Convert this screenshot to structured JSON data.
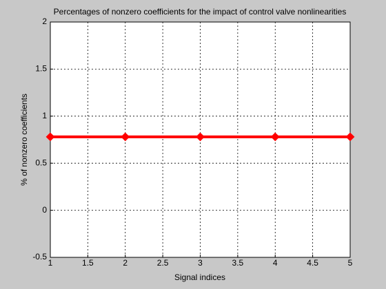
{
  "chart_data": {
    "type": "line",
    "title": "Percentages of nonzero coefficients for the impact of control valve nonlinearities",
    "x_label": "Signal indices",
    "y_label": "% of nonzero coefficients",
    "x": [
      1,
      2,
      3,
      4,
      5
    ],
    "series": [
      {
        "color": "#ff0000",
        "values": [
          0.78,
          0.78,
          0.78,
          0.78,
          0.78
        ]
      }
    ],
    "xlim": [
      1,
      5
    ],
    "xticks": [
      1,
      1.5,
      2,
      2.5,
      3,
      3.5,
      4,
      4.5,
      5
    ],
    "ylim": [
      -0.5,
      2
    ],
    "yticks": [
      -0.5,
      0,
      0.5,
      1,
      1.5,
      2
    ],
    "grid": true
  }
}
